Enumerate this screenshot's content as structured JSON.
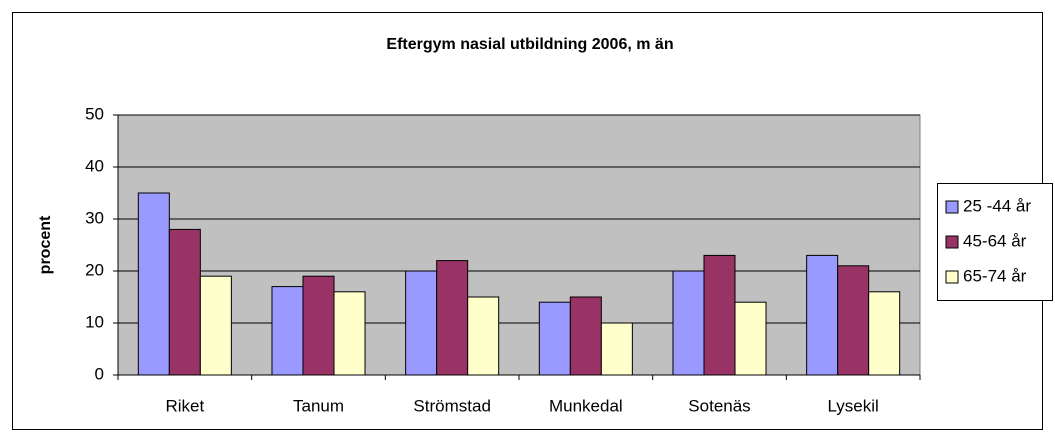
{
  "chart_data": {
    "type": "bar",
    "title": "Eftergym nasial utbildning 2006, m än",
    "y_label": "procent",
    "categories": [
      "Riket",
      "Tanum",
      "Strömstad",
      "Munkedal",
      "Sotenäs",
      "Lysekil"
    ],
    "series": [
      {
        "name": "25 -44 år",
        "color": "#9999ff",
        "values": [
          35,
          17,
          20,
          14,
          20,
          23
        ]
      },
      {
        "name": "45-64 år",
        "color": "#993366",
        "values": [
          28,
          19,
          22,
          15,
          23,
          21
        ]
      },
      {
        "name": "65-74 år",
        "color": "#ffffcc",
        "values": [
          19,
          16,
          15,
          10,
          14,
          16
        ]
      }
    ],
    "ylim": [
      0,
      50
    ],
    "yticks": [
      0,
      10,
      20,
      30,
      40,
      50
    ],
    "grid": true,
    "legend": "right"
  }
}
